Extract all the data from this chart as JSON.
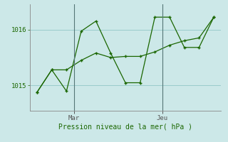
{
  "title": "",
  "xlabel": "Pression niveau de la mer( hPa )",
  "background_color": "#cce8e8",
  "grid_color": "#99cccc",
  "line_color": "#1a6600",
  "yticks": [
    1015,
    1016
  ],
  "ylim": [
    1014.55,
    1016.45
  ],
  "xlim": [
    -0.5,
    12.5
  ],
  "day_ticks": [
    {
      "x": 2.5,
      "label": "Mar"
    },
    {
      "x": 8.5,
      "label": "Jeu"
    }
  ],
  "line1_x": [
    0,
    1,
    2,
    3,
    4,
    5,
    6,
    7,
    8,
    9,
    10,
    11,
    12
  ],
  "line1_y": [
    1014.88,
    1015.28,
    1014.9,
    1015.97,
    1016.15,
    1015.58,
    1015.05,
    1015.05,
    1016.22,
    1016.22,
    1015.68,
    1015.68,
    1016.22
  ],
  "line2_x": [
    0,
    1,
    2,
    3,
    4,
    5,
    6,
    7,
    8,
    9,
    10,
    11,
    12
  ],
  "line2_y": [
    1014.88,
    1015.28,
    1015.28,
    1015.45,
    1015.58,
    1015.5,
    1015.52,
    1015.52,
    1015.6,
    1015.72,
    1015.8,
    1015.85,
    1016.22
  ],
  "fig_width": 3.2,
  "fig_height": 2.0,
  "dpi": 100
}
